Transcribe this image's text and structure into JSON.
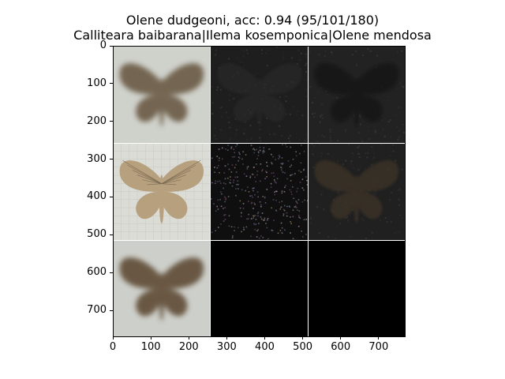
{
  "chart_data": {
    "type": "image-grid",
    "title": "Olene dudgeoni, acc: 0.94 (95/101/180)",
    "subtitle": "Calliteara baibarana|Ilema kosemponica|Olene mendosa",
    "xticks": [
      "0",
      "100",
      "200",
      "300",
      "400",
      "500",
      "600",
      "700"
    ],
    "yticks": [
      "0",
      "100",
      "200",
      "300",
      "400",
      "500",
      "600",
      "700"
    ],
    "x_range": [
      0,
      771
    ],
    "y_range": [
      0,
      771
    ],
    "grid": {
      "rows": 3,
      "cols": 3,
      "cell_size": 257
    },
    "tiles": [
      {
        "row": 0,
        "col": 0,
        "kind": "moth-blur",
        "bg": "#cfd1cb",
        "moth": "#6b5a45"
      },
      {
        "row": 0,
        "col": 1,
        "kind": "dark-noise",
        "bg": "#1e1e1e",
        "moth": "#2c2c2c"
      },
      {
        "row": 0,
        "col": 2,
        "kind": "dark-moth",
        "bg": "#222222",
        "moth": "#141212"
      },
      {
        "row": 1,
        "col": 0,
        "kind": "moth-sharp",
        "bg": "#dcdcd6",
        "moth": "#b59d7a"
      },
      {
        "row": 1,
        "col": 1,
        "kind": "speckle",
        "bg": "#0f0f10",
        "moth": "#3a3440"
      },
      {
        "row": 1,
        "col": 2,
        "kind": "dark-moth",
        "bg": "#202020",
        "moth": "#3a3128"
      },
      {
        "row": 2,
        "col": 0,
        "kind": "moth-blur",
        "bg": "#cdcfca",
        "moth": "#5e4c36"
      },
      {
        "row": 2,
        "col": 1,
        "kind": "black",
        "bg": "#000000",
        "moth": "#000000"
      },
      {
        "row": 2,
        "col": 2,
        "kind": "black",
        "bg": "#000000",
        "moth": "#000000"
      }
    ]
  }
}
